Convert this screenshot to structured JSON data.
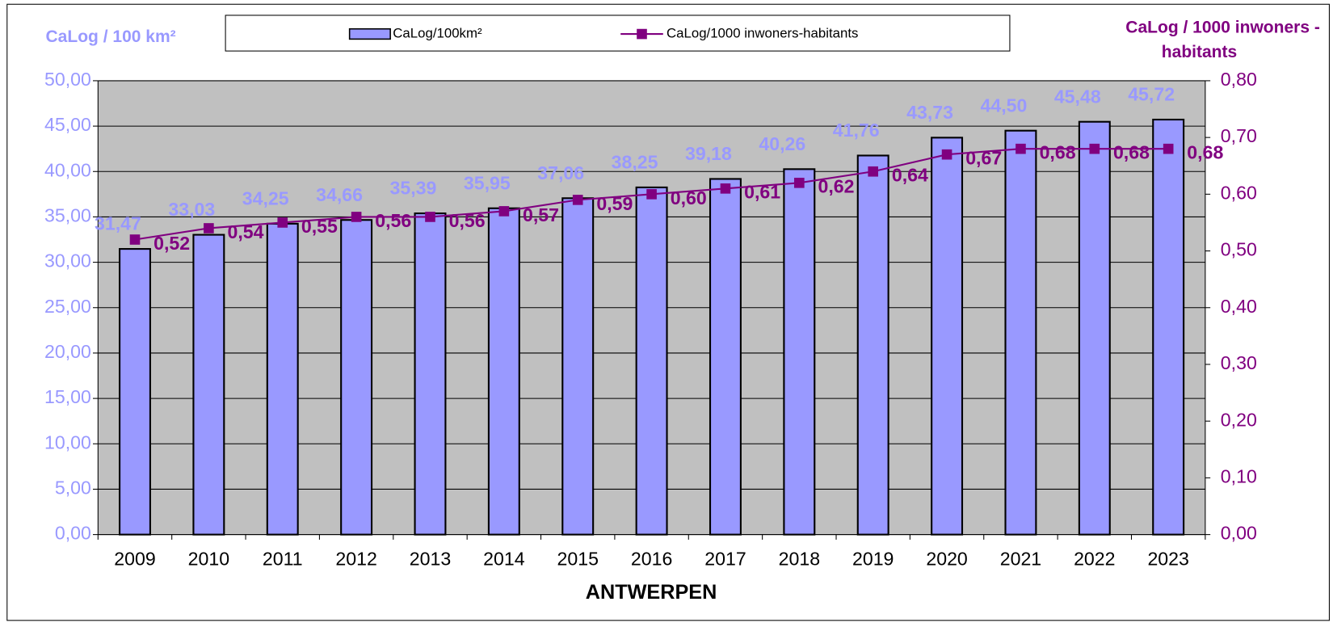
{
  "chart_data": {
    "type": "bar_line",
    "x_label": "ANTWERPEN",
    "y_label": "CaLog / 100 km²",
    "y2_label": [
      "CaLog / 1000 inwoners -",
      "habitants"
    ],
    "categories": [
      "2009",
      "2010",
      "2011",
      "2012",
      "2013",
      "2014",
      "2015",
      "2016",
      "2017",
      "2018",
      "2019",
      "2020",
      "2021",
      "2022",
      "2023"
    ],
    "series": [
      {
        "name": "CaLog/100km²",
        "type": "bar",
        "color": "#9999ff",
        "values": [
          31.47,
          33.03,
          34.25,
          34.66,
          35.39,
          35.95,
          37.06,
          38.25,
          39.18,
          40.26,
          41.76,
          43.73,
          44.5,
          45.48,
          45.72
        ],
        "value_labels": [
          "31,47",
          "33,03",
          "34,25",
          "34,66",
          "35,39",
          "35,95",
          "37,06",
          "38,25",
          "39,18",
          "40,26",
          "41,76",
          "43,73",
          "44,50",
          "45,48",
          "45,72"
        ]
      },
      {
        "name": "CaLog/1000 inwoners-habitants",
        "type": "line",
        "axis": "y2",
        "color": "#800080",
        "values": [
          0.52,
          0.54,
          0.55,
          0.56,
          0.56,
          0.57,
          0.59,
          0.6,
          0.61,
          0.62,
          0.64,
          0.67,
          0.68,
          0.68,
          0.68
        ],
        "value_labels": [
          "0,52",
          "0,54",
          "0,55",
          "0,56",
          "0,56",
          "0,57",
          "0,59",
          "0,60",
          "0,61",
          "0,62",
          "0,64",
          "0,67",
          "0,68",
          "0,68",
          "0,68"
        ]
      }
    ],
    "ylim": [
      0,
      50
    ],
    "yticks": [
      {
        "value": 0,
        "label": "0,00"
      },
      {
        "value": 5,
        "label": "5,00"
      },
      {
        "value": 10,
        "label": "10,00"
      },
      {
        "value": 15,
        "label": "15,00"
      },
      {
        "value": 20,
        "label": "20,00"
      },
      {
        "value": 25,
        "label": "25,00"
      },
      {
        "value": 30,
        "label": "30,00"
      },
      {
        "value": 35,
        "label": "35,00"
      },
      {
        "value": 40,
        "label": "40,00"
      },
      {
        "value": 45,
        "label": "45,00"
      },
      {
        "value": 50,
        "label": "50,00"
      }
    ],
    "y2lim": [
      0,
      0.8
    ],
    "y2ticks": [
      {
        "value": 0,
        "label": "0,00"
      },
      {
        "value": 0.1,
        "label": "0,10"
      },
      {
        "value": 0.2,
        "label": "0,20"
      },
      {
        "value": 0.3,
        "label": "0,30"
      },
      {
        "value": 0.4,
        "label": "0,40"
      },
      {
        "value": 0.5,
        "label": "0,50"
      },
      {
        "value": 0.6,
        "label": "0,60"
      },
      {
        "value": 0.7,
        "label": "0,70"
      },
      {
        "value": 0.8,
        "label": "0,80"
      }
    ],
    "grid": true
  }
}
